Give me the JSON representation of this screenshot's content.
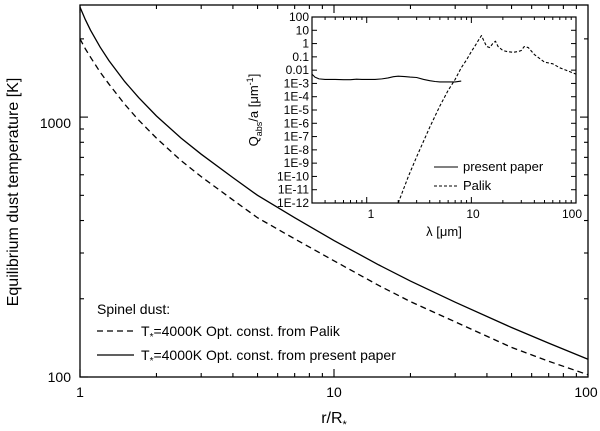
{
  "chart_data": [
    {
      "id": "main",
      "type": "line",
      "xlabel": "r/R",
      "xlabel_sub": "*",
      "ylabel": "Equilibrium dust temperature [K]",
      "xscale": "log",
      "yscale": "log",
      "xlim": [
        1,
        100
      ],
      "ylim": [
        100,
        2700
      ],
      "xticks": [
        1,
        10,
        100
      ],
      "xtick_labels": [
        "1",
        "10",
        "100"
      ],
      "yticks": [
        100,
        1000
      ],
      "ytick_labels": [
        "100",
        "1000"
      ],
      "grid": false,
      "legend_position": "bottom-left",
      "legend_title": "Spinel dust:",
      "series": [
        {
          "name": "T*=4000K Opt. const. from Palik",
          "label_T": "T",
          "label_sub": "*",
          "label_rest": "=4000K Opt. const. from Palik",
          "style": "dashed",
          "x": [
            1,
            1.05,
            1.1,
            1.2,
            1.3,
            1.5,
            1.7,
            2,
            2.5,
            3,
            4,
            5,
            7,
            10,
            15,
            20,
            30,
            50,
            70,
            100
          ],
          "y": [
            2000,
            1830,
            1700,
            1490,
            1340,
            1120,
            975,
            830,
            680,
            590,
            480,
            410,
            340,
            280,
            225,
            195,
            163,
            130,
            115,
            102
          ]
        },
        {
          "name": "T*=4000K Opt. const. from present paper",
          "label_T": "T",
          "label_sub": "*",
          "label_rest": "=4000K Opt. const. from present paper",
          "style": "solid",
          "x": [
            1,
            1.05,
            1.1,
            1.2,
            1.3,
            1.5,
            1.7,
            2,
            2.5,
            3,
            4,
            5,
            7,
            10,
            15,
            20,
            30,
            50,
            70,
            100
          ],
          "y": [
            2650,
            2370,
            2160,
            1860,
            1650,
            1370,
            1190,
            1010,
            830,
            720,
            585,
            500,
            410,
            335,
            270,
            234,
            194,
            155,
            135,
            117
          ]
        }
      ]
    },
    {
      "id": "inset",
      "type": "line",
      "xlabel": "λ [μm]",
      "ylabel_Q": "Q",
      "ylabel_sub": "abs",
      "ylabel_mid": "/a [μm",
      "ylabel_sup": "-1",
      "ylabel_end": "]",
      "xscale": "log",
      "yscale": "log",
      "xlim": [
        0.3,
        100
      ],
      "ylim": [
        1e-12,
        100
      ],
      "xticks": [
        1,
        10,
        100
      ],
      "xtick_labels": [
        "1",
        "10",
        "100"
      ],
      "ytick_labels": [
        "100",
        "10",
        "1",
        "0.1",
        "0.01",
        "1E-3",
        "1E-4",
        "1E-5",
        "1E-6",
        "1E-7",
        "1E-8",
        "1E-9",
        "1E-10",
        "1E-11",
        "1E-12"
      ],
      "ytick_exponents": [
        2,
        1,
        0,
        -1,
        -2,
        -3,
        -4,
        -5,
        -6,
        -7,
        -8,
        -9,
        -10,
        -11,
        -12
      ],
      "grid": false,
      "legend_position": "bottom-right",
      "series": [
        {
          "name": "present paper",
          "style": "solid",
          "x": [
            0.3,
            0.32,
            0.35,
            0.4,
            0.5,
            0.6,
            0.7,
            0.8,
            0.9,
            1.0,
            1.2,
            1.4,
            1.6,
            1.8,
            2.0,
            2.3,
            2.6,
            3.0,
            3.5,
            4.0,
            4.5,
            5.0,
            6.0,
            7.0,
            8.0
          ],
          "y": [
            0.005,
            0.003,
            0.0022,
            0.002,
            0.002,
            0.0019,
            0.0019,
            0.0021,
            0.002,
            0.002,
            0.002,
            0.0022,
            0.0026,
            0.0032,
            0.0035,
            0.0033,
            0.003,
            0.0028,
            0.002,
            0.0016,
            0.0014,
            0.0013,
            0.0013,
            0.0013,
            0.0015
          ]
        },
        {
          "name": "Palik",
          "style": "dashed",
          "x": [
            2.0,
            2.5,
            3.0,
            4.0,
            5.0,
            6.0,
            7.0,
            8.0,
            9.0,
            10,
            11,
            12,
            12.5,
            13,
            14,
            15,
            16,
            17,
            18,
            20,
            22,
            25,
            28,
            30,
            32,
            35,
            40,
            50,
            60,
            70,
            80,
            100
          ],
          "y": [
            1e-12,
            1e-10,
            3e-09,
            5e-07,
            2e-05,
            0.0003,
            0.002,
            0.015,
            0.06,
            0.25,
            0.8,
            2.5,
            4.0,
            2.0,
            0.6,
            0.5,
            1.0,
            1.5,
            0.6,
            0.3,
            0.25,
            0.22,
            0.25,
            0.3,
            0.6,
            0.5,
            0.15,
            0.04,
            0.03,
            0.015,
            0.01,
            0.005
          ]
        }
      ]
    }
  ]
}
